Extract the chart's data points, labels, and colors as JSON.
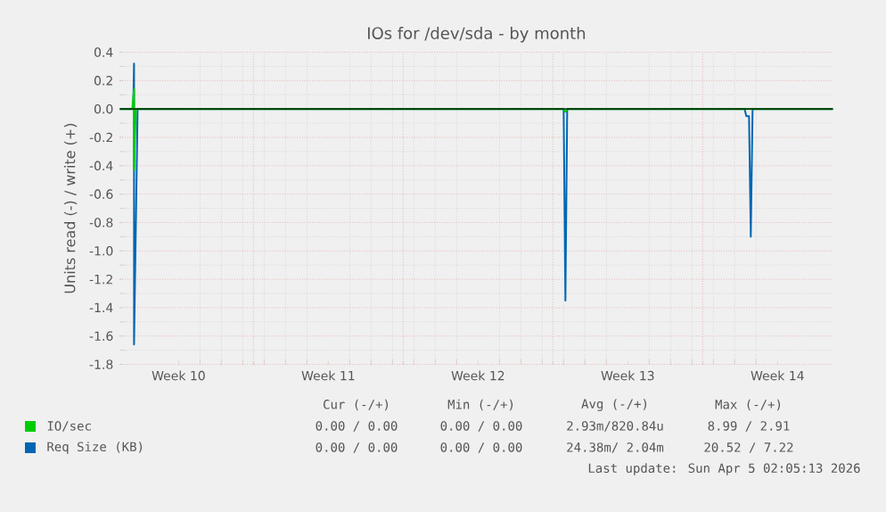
{
  "chart_data": {
    "type": "line",
    "title": "IOs for /dev/sda - by month",
    "ylabel": "Units read (-) / write (+)",
    "xlim": [
      "2026-03-02T18:00",
      "2026-04-05T02:05"
    ],
    "xticks": [
      {
        "value": "2026-03-05T12:00",
        "label": "Week 10"
      },
      {
        "value": "2026-03-12T12:00",
        "label": "Week 11"
      },
      {
        "value": "2026-03-19T12:00",
        "label": "Week 12"
      },
      {
        "value": "2026-03-26T12:00",
        "label": "Week 13"
      },
      {
        "value": "2026-04-02T12:00",
        "label": "Week 14"
      },
      {
        "value": "2026-03-09",
        "label": null
      },
      {
        "value": "2026-03-16",
        "label": null
      },
      {
        "value": "2026-03-23",
        "label": null
      },
      {
        "value": "2026-03-30",
        "label": null
      }
    ],
    "ylim": [
      -1.8,
      0.4
    ],
    "yticks": [
      -1.8,
      -1.6,
      -1.4,
      -1.2,
      {
        "value": -1,
        "label": "-1.0"
      },
      -0.8,
      -0.6,
      -0.4,
      -0.2,
      {
        "value": 0,
        "label": "0.0"
      },
      0.2,
      0.4
    ],
    "grid": true,
    "legend": "bottom",
    "ref_lines": [
      {
        "axis": "y",
        "value": 0,
        "color": "#000000"
      }
    ],
    "series": [
      {
        "name": "IO/sec",
        "color": "#00cc00",
        "x": [
          "2026-03-02T18:00",
          "2026-03-03T08:00",
          "2026-03-03T10:00",
          "2026-03-03T10:00",
          "2026-03-03T12:00",
          "2026-03-23T12:00",
          "2026-03-23T14:00",
          "2026-03-23T16:00",
          "2026-04-05T02:05"
        ],
        "values": [
          0,
          0,
          0.14,
          -0.43,
          0,
          0,
          -0.02,
          0,
          0
        ]
      },
      {
        "name": "Req Size (KB)",
        "color": "#0066b3",
        "x": [
          "2026-03-02T18:00",
          "2026-03-03T09:00",
          "2026-03-03T10:00",
          "2026-03-03T10:00",
          "2026-03-03T14:00",
          "2026-03-23T12:00",
          "2026-03-23T14:00",
          "2026-03-23T16:00",
          "2026-03-31T23:00",
          "2026-04-01T01:00",
          "2026-04-01T04:00",
          "2026-04-01T06:00",
          "2026-04-01T08:00",
          "2026-04-05T02:05"
        ],
        "values": [
          0,
          0,
          0.32,
          -1.66,
          0,
          0,
          -1.35,
          0,
          0,
          -0.05,
          -0.05,
          -0.9,
          0,
          0
        ]
      }
    ],
    "annotations": [
      "Cur (-/+)",
      "Min (-/+)",
      "Avg (-/+)",
      "Max (-/+)",
      "0.00 / 0.00",
      "0.00 / 0.00",
      "2.93m/820.84u",
      "8.99 / 2.91",
      "0.00 / 0.00",
      "0.00 / 0.00",
      "24.38m/ 2.04m",
      "20.52 / 7.22",
      "Last update: Sun Apr  5 02:05:13 2026"
    ]
  }
}
